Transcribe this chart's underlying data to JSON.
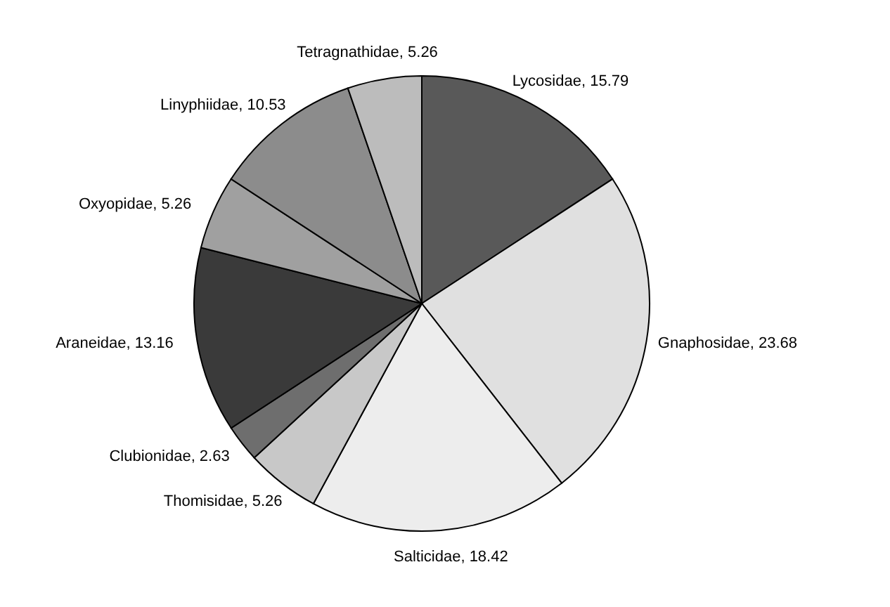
{
  "chart_data": {
    "type": "pie",
    "categories": [
      "Lycosidae",
      "Gnaphosidae",
      "Salticidae",
      "Thomisidae",
      "Clubionidae",
      "Araneidae",
      "Oxyopidae",
      "Linyphiidae",
      "Tetragnathidae"
    ],
    "values": [
      15.79,
      23.68,
      18.42,
      5.26,
      2.63,
      13.16,
      5.26,
      10.53,
      5.26
    ],
    "colors": [
      "#595959",
      "#e0e0e0",
      "#ededed",
      "#c8c8c8",
      "#6e6e6e",
      "#3a3a3a",
      "#a0a0a0",
      "#8c8c8c",
      "#bcbcbc"
    ],
    "value_labels": [
      ", 15.79",
      ", 23.68",
      ", 18.42",
      ", 5.26",
      ", 2.63",
      ", 13.16",
      ", 5.26",
      ", 10.53",
      ", 5.26"
    ],
    "legend": false
  }
}
